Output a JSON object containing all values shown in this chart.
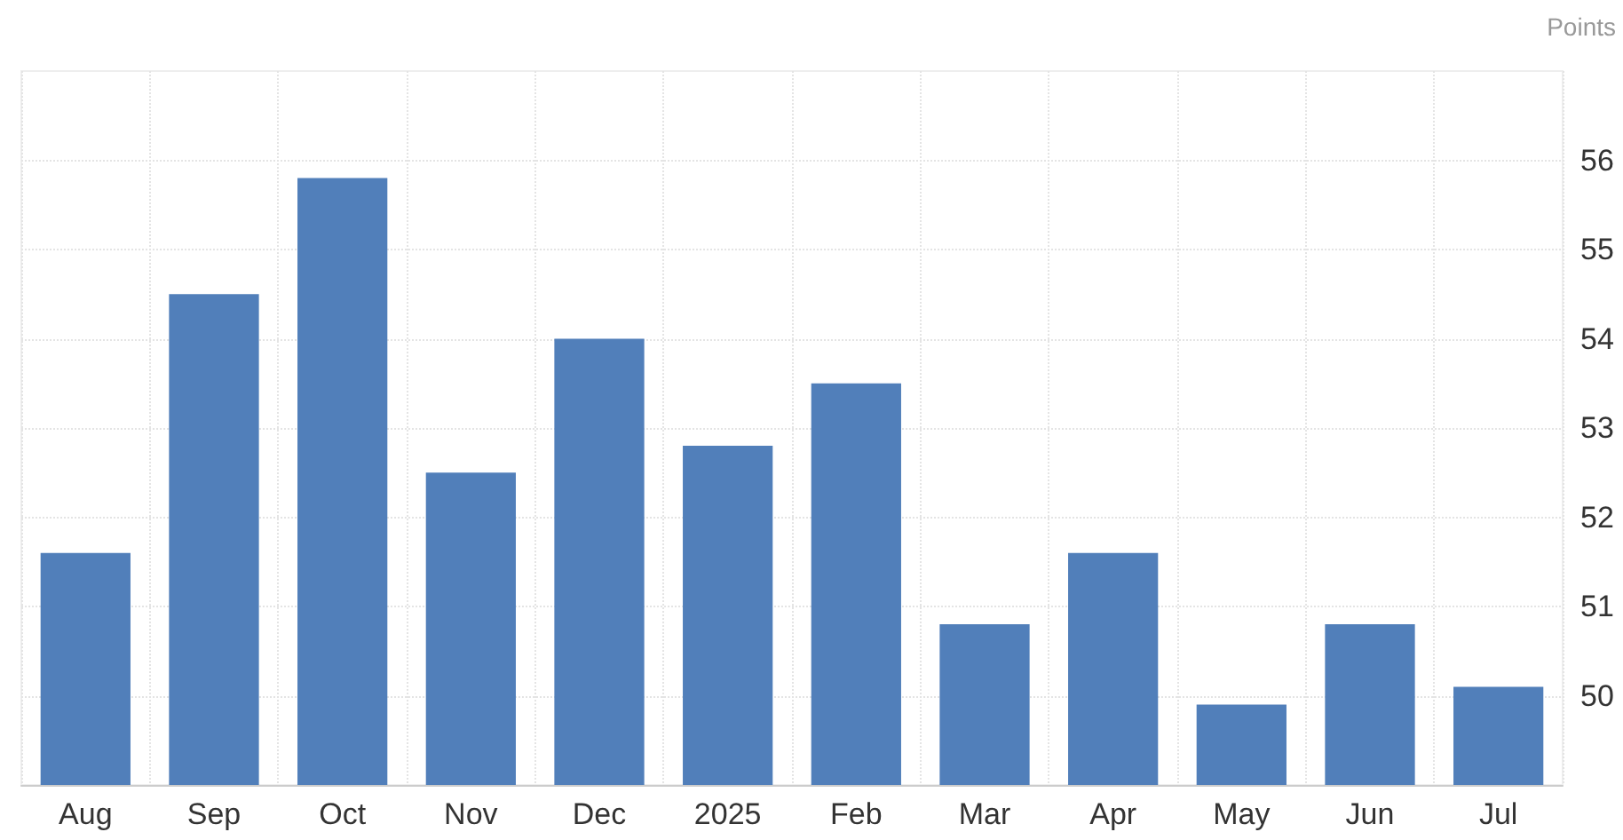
{
  "chart_data": {
    "type": "bar",
    "ylabel": "Points",
    "categories": [
      "Aug",
      "Sep",
      "Oct",
      "Nov",
      "Dec",
      "2025",
      "Feb",
      "Mar",
      "Apr",
      "May",
      "Jun",
      "Jul"
    ],
    "values": [
      51.6,
      54.5,
      55.8,
      52.5,
      54.0,
      52.8,
      53.5,
      50.8,
      51.6,
      49.9,
      50.8,
      50.1
    ],
    "color": "#517fba",
    "ylim": [
      49,
      57
    ],
    "yticks": [
      50,
      51,
      52,
      53,
      54,
      55,
      56
    ],
    "grid": true
  }
}
